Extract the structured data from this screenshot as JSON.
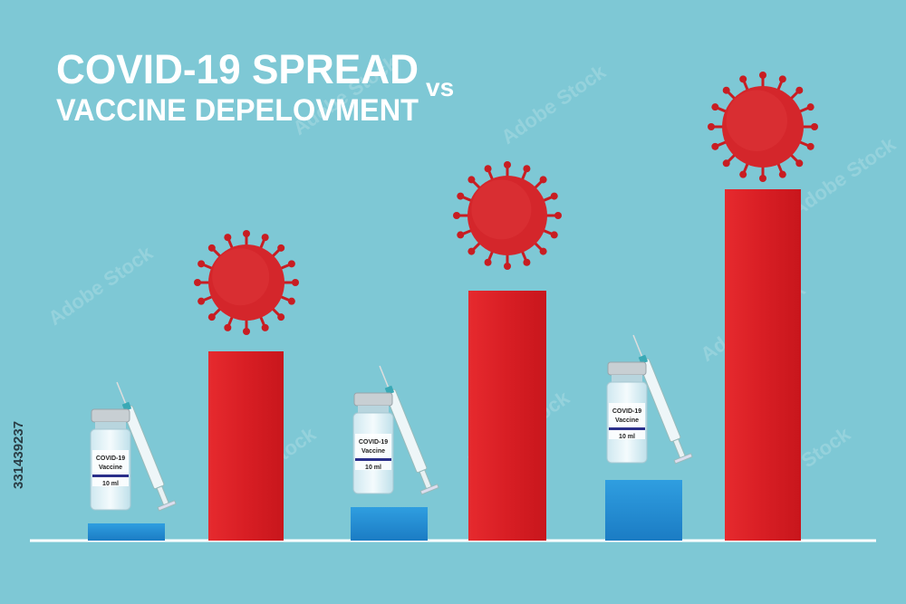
{
  "header": {
    "title_line1": "COVID-19 SPREAD",
    "title_line2": "VACCINE DEPELOVMENT",
    "connector": "vs"
  },
  "vials": [
    {
      "name": "COVID-19",
      "label": "Vaccine",
      "volume": "10 ml"
    },
    {
      "name": "COVID-19",
      "label": "Vaccine",
      "volume": "10 ml"
    },
    {
      "name": "COVID-19",
      "label": "Vaccine",
      "volume": "10 ml"
    }
  ],
  "watermark": {
    "brand": "Adobe Stock",
    "id": "331439237"
  }
}
